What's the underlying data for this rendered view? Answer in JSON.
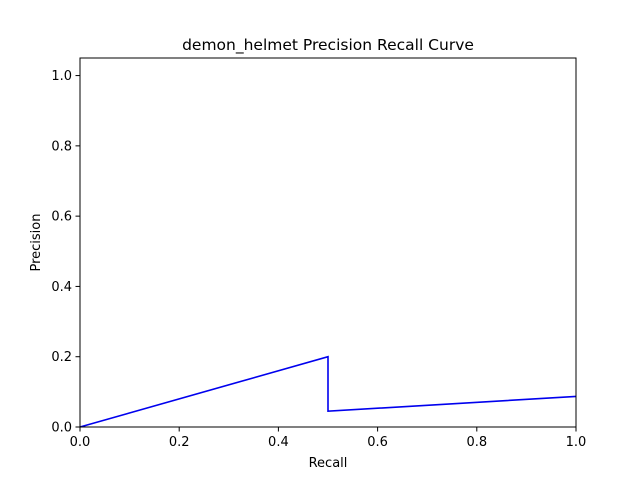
{
  "chart_data": {
    "type": "line",
    "title": "demon_helmet Precision Recall Curve",
    "xlabel": "Recall",
    "ylabel": "Precision",
    "xlim": [
      0.0,
      1.0
    ],
    "ylim": [
      0.0,
      1.05
    ],
    "xticks": [
      "0.0",
      "0.2",
      "0.4",
      "0.6",
      "0.8",
      "1.0"
    ],
    "yticks": [
      "0.0",
      "0.2",
      "0.4",
      "0.6",
      "0.8",
      "1.0"
    ],
    "grid": false,
    "legend": "none",
    "series": [
      {
        "color": "#0000ee",
        "x": [
          0.0,
          0.5,
          0.5,
          1.0
        ],
        "y": [
          0.0,
          0.2,
          0.045,
          0.087
        ]
      }
    ]
  }
}
